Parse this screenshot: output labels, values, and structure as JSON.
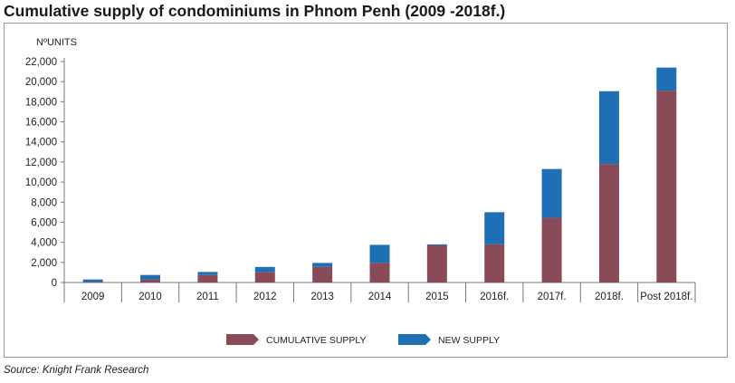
{
  "title": "Cumulative supply of condominiums in Phnom Penh (2009 -2018f.)",
  "source": "Source: Knight Frank Research",
  "colors": {
    "cumulative": "#8a4b58",
    "new": "#1f6fb5",
    "axis": "#777777"
  },
  "chart_data": {
    "type": "bar",
    "stacked": true,
    "ylabel": "NºUNITS",
    "ylim": [
      0,
      22000
    ],
    "yticks": [
      0,
      2000,
      4000,
      6000,
      8000,
      10000,
      12000,
      14000,
      16000,
      18000,
      20000,
      22000
    ],
    "ytick_labels": [
      "0",
      "2,000",
      "4,000",
      "6,000",
      "8,000",
      "10,000",
      "12,000",
      "14,000",
      "16,000",
      "18,000",
      "20,000",
      "22,000"
    ],
    "categories": [
      "2009",
      "2010",
      "2011",
      "2012",
      "2013",
      "2014",
      "2015",
      "2016f.",
      "2017f.",
      "2018f.",
      "Post 2018f."
    ],
    "series": [
      {
        "name": "CUMULATIVE SUPPLY",
        "values": [
          50,
          300,
          750,
          1050,
          1550,
          1950,
          3700,
          3800,
          6450,
          11800,
          19100
        ]
      },
      {
        "name": "NEW SUPPLY",
        "values": [
          250,
          450,
          300,
          500,
          400,
          1800,
          100,
          3200,
          4850,
          7250,
          2300
        ]
      }
    ],
    "grid": false,
    "legend": "bottom"
  }
}
